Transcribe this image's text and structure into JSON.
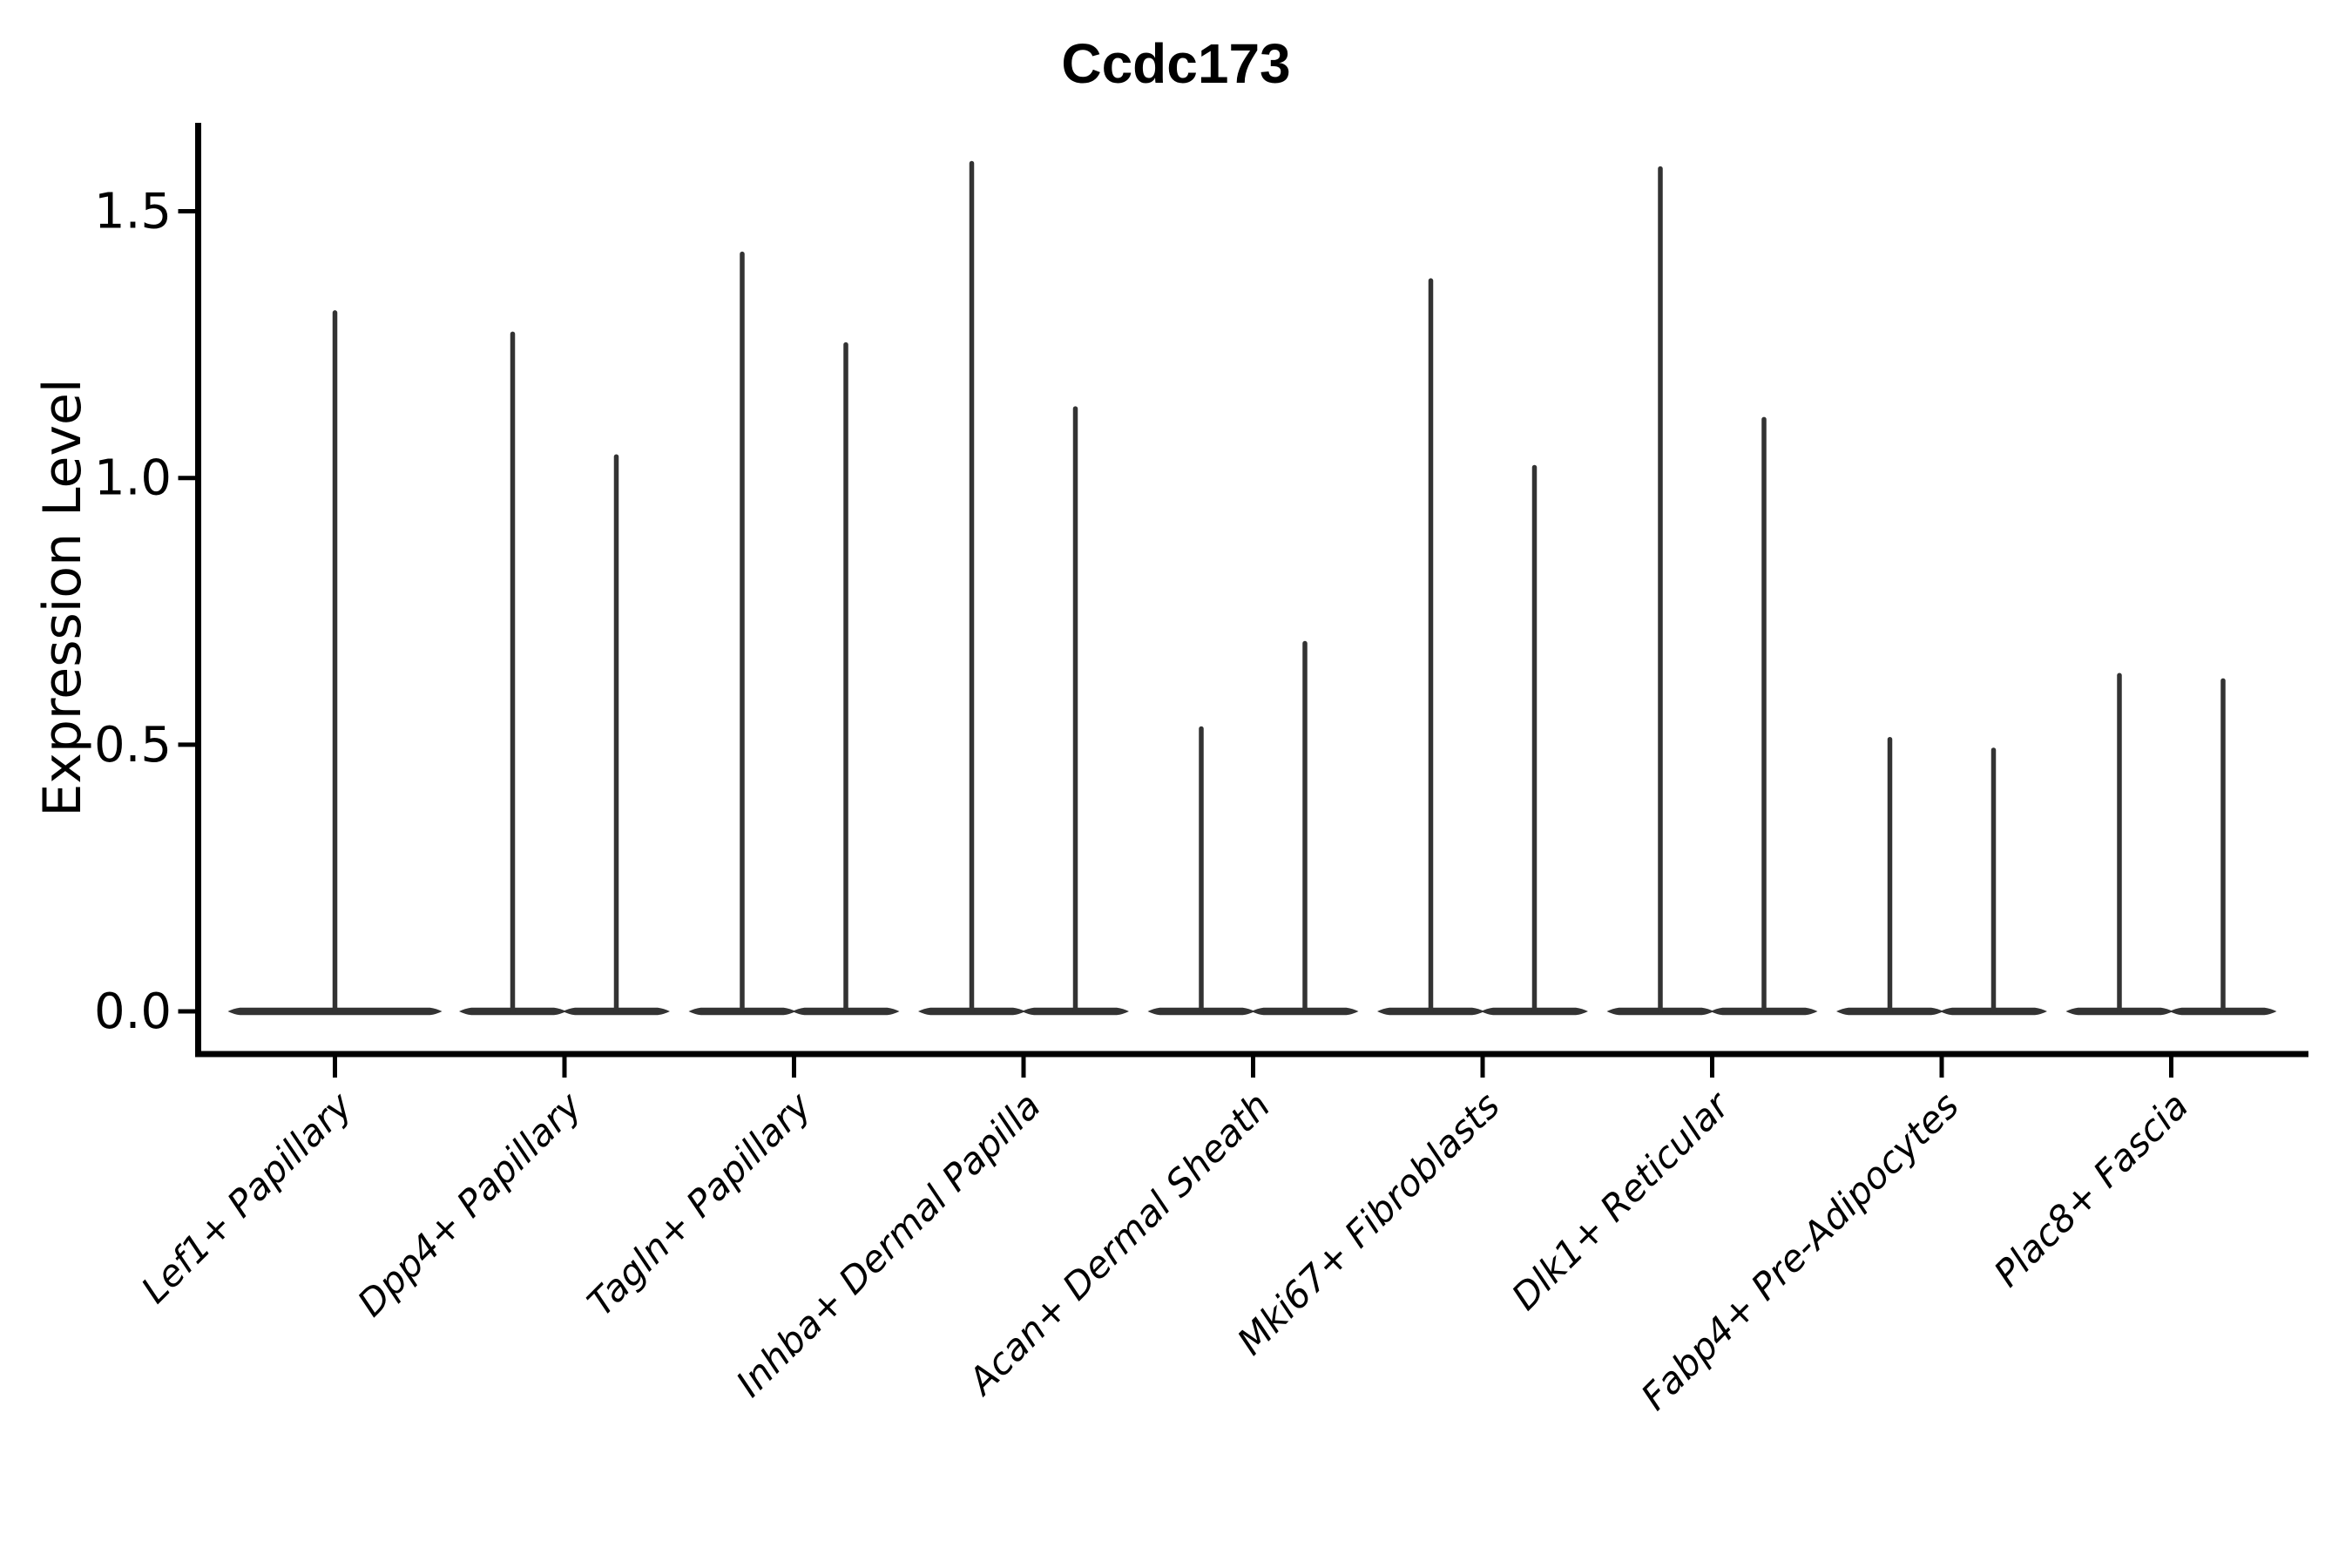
{
  "title": "Ccdc173",
  "chart_data": {
    "type": "violin",
    "title": "Ccdc173",
    "xlabel": "",
    "ylabel": "Expression Level",
    "ylim": [
      -0.08,
      1.67
    ],
    "yticks": [
      0.0,
      0.5,
      1.0,
      1.5
    ],
    "ytick_labels": [
      "0.0",
      "0.5",
      "1.0",
      "1.5"
    ],
    "grid": false,
    "legend": "none",
    "categories": [
      "Lef1+ Papillary",
      "Dpp4+ Papillary",
      "Tagln+ Papillary",
      "Inhba+ Dermal Papilla",
      "Acan+ Dermal Sheath",
      "Mki67+ Fibroblasts",
      "Dlk1+ Reticular",
      "Fabp4+ Pre-Adipocytes",
      "Plac8+ Fascia"
    ],
    "violins": [
      {
        "category": "Lef1+ Papillary",
        "peaks": [
          1.31
        ]
      },
      {
        "category": "Dpp4+ Papillary",
        "peaks": [
          1.27,
          1.04
        ]
      },
      {
        "category": "Tagln+ Papillary",
        "peaks": [
          1.42,
          1.25
        ]
      },
      {
        "category": "Inhba+ Dermal Papilla",
        "peaks": [
          1.59,
          1.13
        ]
      },
      {
        "category": "Acan+ Dermal Sheath",
        "peaks": [
          0.53,
          0.69
        ]
      },
      {
        "category": "Mki67+ Fibroblasts",
        "peaks": [
          1.37,
          1.02
        ]
      },
      {
        "category": "Dlk1+ Reticular",
        "peaks": [
          1.58,
          1.11
        ]
      },
      {
        "category": "Fabp4+ Pre-Adipocytes",
        "peaks": [
          0.51,
          0.49
        ]
      },
      {
        "category": "Plac8+ Fascia",
        "peaks": [
          0.63,
          0.62
        ]
      }
    ],
    "shape_note": "each violin is a flat base lens at 0 expression with a thin spike rising to its peak value",
    "colors": {
      "violin": "#333333",
      "axis": "#000000",
      "text": "#000000",
      "background": "#ffffff"
    }
  }
}
